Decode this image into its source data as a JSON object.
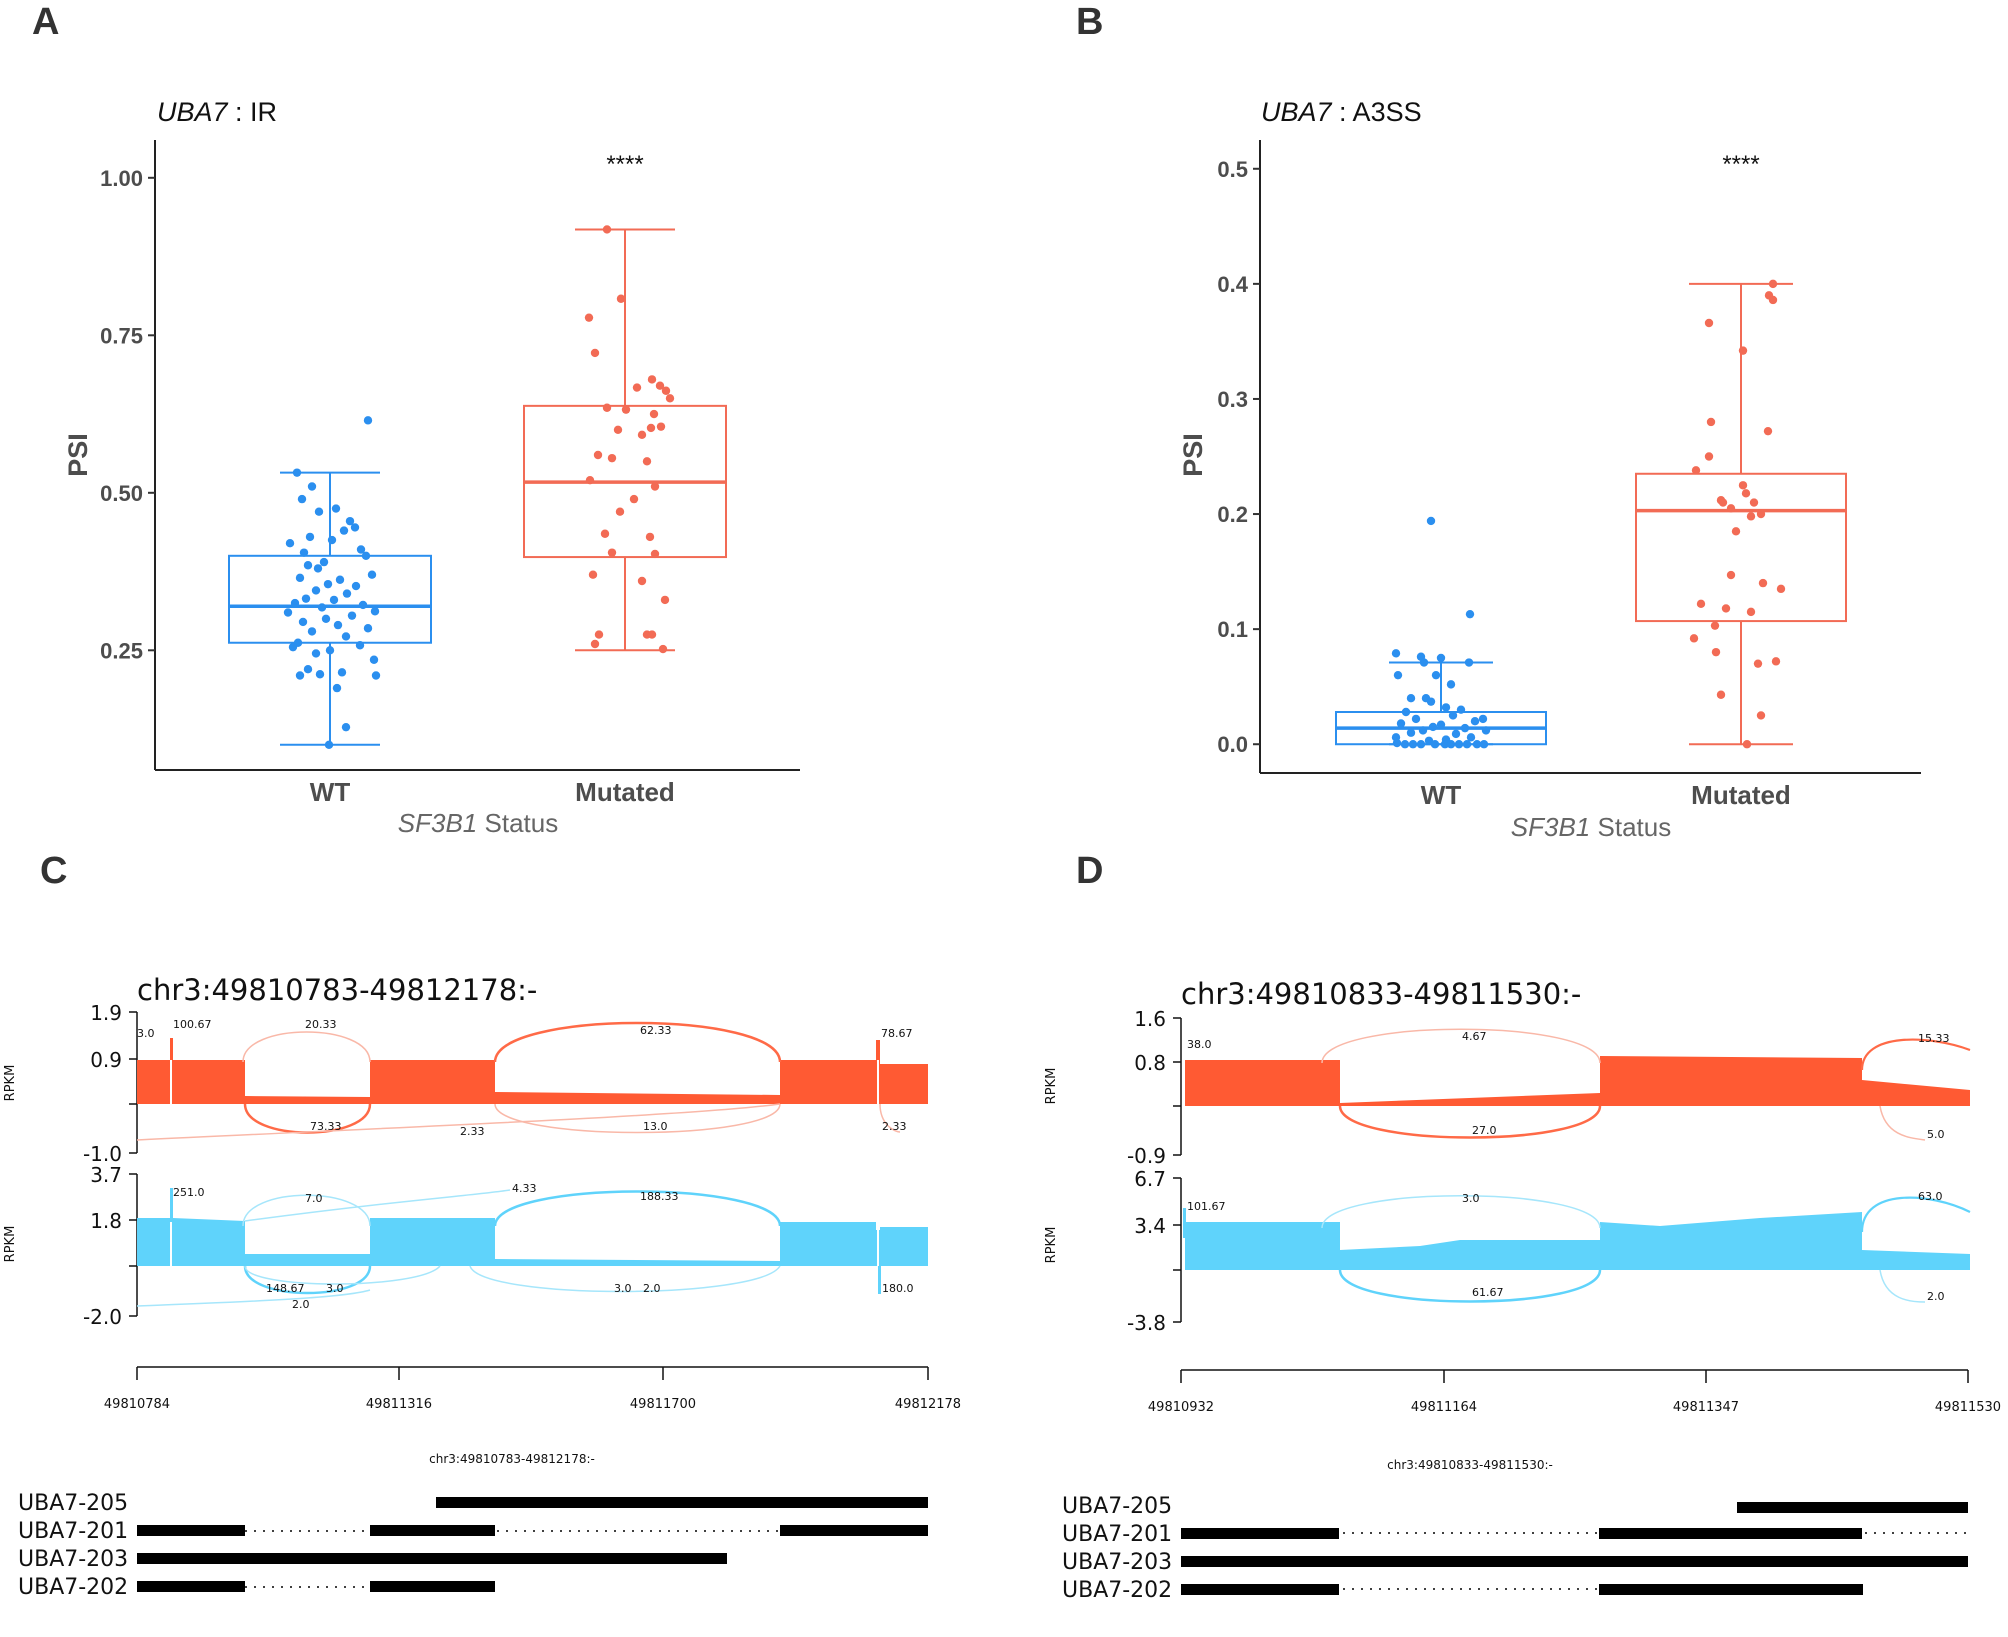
{
  "panel_letters": {
    "A": "A",
    "B": "B",
    "C": "C",
    "D": "D"
  },
  "chart_data": [
    {
      "panel": "A",
      "type": "box",
      "title_gene": "UBA7",
      "title_rest": " : IR",
      "ylabel": "PSI",
      "xlabel_italic": "SF3B1",
      "xlabel_rest": " Status",
      "ylim": [
        0.06,
        1.06
      ],
      "yticks": [
        0.25,
        0.5,
        0.75,
        1.0
      ],
      "ytick_labels": [
        "0.25",
        "0.50",
        "0.75",
        "1.00"
      ],
      "categories": [
        "WT",
        "Mutated"
      ],
      "significance": "****",
      "boxes": [
        {
          "name": "WT",
          "color": "#2b8fef",
          "min": 0.1,
          "q1": 0.262,
          "median": 0.32,
          "q3": 0.4,
          "max": 0.532
        },
        {
          "name": "Mutated",
          "color": "#f26b55",
          "min": 0.25,
          "q1": 0.398,
          "median": 0.517,
          "q3": 0.638,
          "max": 0.918
        }
      ],
      "points": [
        {
          "g": 0,
          "dx": 0.38,
          "y": 0.615
        },
        {
          "g": 0,
          "dx": -0.33,
          "y": 0.532
        },
        {
          "g": 0,
          "dx": -0.18,
          "y": 0.51
        },
        {
          "g": 0,
          "dx": -0.28,
          "y": 0.49
        },
        {
          "g": 0,
          "dx": 0.06,
          "y": 0.475
        },
        {
          "g": 0,
          "dx": -0.11,
          "y": 0.47
        },
        {
          "g": 0,
          "dx": 0.2,
          "y": 0.455
        },
        {
          "g": 0,
          "dx": 0.25,
          "y": 0.445
        },
        {
          "g": 0,
          "dx": 0.14,
          "y": 0.44
        },
        {
          "g": 0,
          "dx": -0.2,
          "y": 0.43
        },
        {
          "g": 0,
          "dx": 0.02,
          "y": 0.425
        },
        {
          "g": 0,
          "dx": -0.4,
          "y": 0.42
        },
        {
          "g": 0,
          "dx": 0.31,
          "y": 0.41
        },
        {
          "g": 0,
          "dx": -0.26,
          "y": 0.405
        },
        {
          "g": 0,
          "dx": 0.36,
          "y": 0.4
        },
        {
          "g": 0,
          "dx": -0.06,
          "y": 0.39
        },
        {
          "g": 0,
          "dx": -0.22,
          "y": 0.385
        },
        {
          "g": 0,
          "dx": -0.12,
          "y": 0.38
        },
        {
          "g": 0,
          "dx": 0.42,
          "y": 0.37
        },
        {
          "g": 0,
          "dx": -0.3,
          "y": 0.365
        },
        {
          "g": 0,
          "dx": 0.1,
          "y": 0.362
        },
        {
          "g": 0,
          "dx": -0.02,
          "y": 0.355
        },
        {
          "g": 0,
          "dx": 0.26,
          "y": 0.352
        },
        {
          "g": 0,
          "dx": -0.14,
          "y": 0.345
        },
        {
          "g": 0,
          "dx": 0.17,
          "y": 0.34
        },
        {
          "g": 0,
          "dx": -0.24,
          "y": 0.332
        },
        {
          "g": 0,
          "dx": 0.04,
          "y": 0.33
        },
        {
          "g": 0,
          "dx": -0.35,
          "y": 0.325
        },
        {
          "g": 0,
          "dx": 0.33,
          "y": 0.322
        },
        {
          "g": 0,
          "dx": -0.08,
          "y": 0.318
        },
        {
          "g": 0,
          "dx": 0.45,
          "y": 0.312
        },
        {
          "g": 0,
          "dx": -0.42,
          "y": 0.31
        },
        {
          "g": 0,
          "dx": 0.22,
          "y": 0.305
        },
        {
          "g": 0,
          "dx": -0.04,
          "y": 0.3
        },
        {
          "g": 0,
          "dx": -0.27,
          "y": 0.295
        },
        {
          "g": 0,
          "dx": 0.08,
          "y": 0.29
        },
        {
          "g": 0,
          "dx": 0.38,
          "y": 0.285
        },
        {
          "g": 0,
          "dx": -0.18,
          "y": 0.28
        },
        {
          "g": 0,
          "dx": 0.16,
          "y": 0.272
        },
        {
          "g": 0,
          "dx": -0.32,
          "y": 0.262
        },
        {
          "g": 0,
          "dx": 0.3,
          "y": 0.258
        },
        {
          "g": 0,
          "dx": -0.37,
          "y": 0.255
        },
        {
          "g": 0,
          "dx": 0.0,
          "y": 0.25
        },
        {
          "g": 0,
          "dx": -0.14,
          "y": 0.245
        },
        {
          "g": 0,
          "dx": 0.44,
          "y": 0.235
        },
        {
          "g": 0,
          "dx": -0.22,
          "y": 0.22
        },
        {
          "g": 0,
          "dx": 0.12,
          "y": 0.215
        },
        {
          "g": 0,
          "dx": -0.1,
          "y": 0.212
        },
        {
          "g": 0,
          "dx": -0.3,
          "y": 0.21
        },
        {
          "g": 0,
          "dx": 0.46,
          "y": 0.21
        },
        {
          "g": 0,
          "dx": 0.07,
          "y": 0.19
        },
        {
          "g": 0,
          "dx": 0.16,
          "y": 0.128
        },
        {
          "g": 0,
          "dx": -0.01,
          "y": 0.1
        },
        {
          "g": 1,
          "dx": -0.18,
          "y": 0.918
        },
        {
          "g": 1,
          "dx": -0.04,
          "y": 0.808
        },
        {
          "g": 1,
          "dx": -0.36,
          "y": 0.778
        },
        {
          "g": 1,
          "dx": -0.3,
          "y": 0.722
        },
        {
          "g": 1,
          "dx": 0.27,
          "y": 0.68
        },
        {
          "g": 1,
          "dx": 0.35,
          "y": 0.67
        },
        {
          "g": 1,
          "dx": 0.12,
          "y": 0.667
        },
        {
          "g": 1,
          "dx": 0.41,
          "y": 0.662
        },
        {
          "g": 1,
          "dx": 0.45,
          "y": 0.65
        },
        {
          "g": 1,
          "dx": -0.18,
          "y": 0.635
        },
        {
          "g": 1,
          "dx": 0.01,
          "y": 0.632
        },
        {
          "g": 1,
          "dx": 0.29,
          "y": 0.625
        },
        {
          "g": 1,
          "dx": 0.36,
          "y": 0.605
        },
        {
          "g": 1,
          "dx": 0.26,
          "y": 0.603
        },
        {
          "g": 1,
          "dx": -0.07,
          "y": 0.6
        },
        {
          "g": 1,
          "dx": 0.17,
          "y": 0.592
        },
        {
          "g": 1,
          "dx": -0.27,
          "y": 0.56
        },
        {
          "g": 1,
          "dx": -0.13,
          "y": 0.555
        },
        {
          "g": 1,
          "dx": 0.22,
          "y": 0.55
        },
        {
          "g": 1,
          "dx": -0.35,
          "y": 0.52
        },
        {
          "g": 1,
          "dx": 0.3,
          "y": 0.51
        },
        {
          "g": 1,
          "dx": 0.09,
          "y": 0.49
        },
        {
          "g": 1,
          "dx": -0.05,
          "y": 0.47
        },
        {
          "g": 1,
          "dx": -0.2,
          "y": 0.435
        },
        {
          "g": 1,
          "dx": 0.25,
          "y": 0.43
        },
        {
          "g": 1,
          "dx": -0.13,
          "y": 0.405
        },
        {
          "g": 1,
          "dx": 0.3,
          "y": 0.403
        },
        {
          "g": 1,
          "dx": -0.32,
          "y": 0.37
        },
        {
          "g": 1,
          "dx": 0.17,
          "y": 0.36
        },
        {
          "g": 1,
          "dx": 0.4,
          "y": 0.33
        },
        {
          "g": 1,
          "dx": -0.26,
          "y": 0.275
        },
        {
          "g": 1,
          "dx": 0.22,
          "y": 0.275
        },
        {
          "g": 1,
          "dx": 0.27,
          "y": 0.275
        },
        {
          "g": 1,
          "dx": -0.3,
          "y": 0.26
        },
        {
          "g": 1,
          "dx": 0.38,
          "y": 0.252
        }
      ]
    },
    {
      "panel": "B",
      "type": "box",
      "title_gene": "UBA7",
      "title_rest": " : A3SS",
      "ylabel": "PSI",
      "xlabel_italic": "SF3B1",
      "xlabel_rest": " Status",
      "ylim": [
        -0.025,
        0.525
      ],
      "yticks": [
        0.0,
        0.1,
        0.2,
        0.3,
        0.4,
        0.5
      ],
      "ytick_labels": [
        "0.0",
        "0.1",
        "0.2",
        "0.3",
        "0.4",
        "0.5"
      ],
      "categories": [
        "WT",
        "Mutated"
      ],
      "significance": "****",
      "boxes": [
        {
          "name": "WT",
          "color": "#2b8fef",
          "min": 0.0,
          "q1": 0.0,
          "median": 0.014,
          "q3": 0.028,
          "max": 0.071
        },
        {
          "name": "Mutated",
          "color": "#f26b55",
          "min": 0.0,
          "q1": 0.107,
          "median": 0.203,
          "q3": 0.235,
          "max": 0.4
        }
      ],
      "points": [
        {
          "g": 0,
          "dx": -0.1,
          "y": 0.194
        },
        {
          "g": 0,
          "dx": 0.29,
          "y": 0.113
        },
        {
          "g": 0,
          "dx": -0.45,
          "y": 0.079
        },
        {
          "g": 0,
          "dx": -0.2,
          "y": 0.076
        },
        {
          "g": 0,
          "dx": 0.0,
          "y": 0.075
        },
        {
          "g": 0,
          "dx": -0.17,
          "y": 0.071
        },
        {
          "g": 0,
          "dx": 0.28,
          "y": 0.071
        },
        {
          "g": 0,
          "dx": -0.43,
          "y": 0.06
        },
        {
          "g": 0,
          "dx": -0.05,
          "y": 0.06
        },
        {
          "g": 0,
          "dx": 0.1,
          "y": 0.052
        },
        {
          "g": 0,
          "dx": -0.3,
          "y": 0.04
        },
        {
          "g": 0,
          "dx": -0.15,
          "y": 0.04
        },
        {
          "g": 0,
          "dx": -0.1,
          "y": 0.037
        },
        {
          "g": 0,
          "dx": 0.05,
          "y": 0.032
        },
        {
          "g": 0,
          "dx": 0.2,
          "y": 0.03
        },
        {
          "g": 0,
          "dx": -0.35,
          "y": 0.028
        },
        {
          "g": 0,
          "dx": 0.12,
          "y": 0.025
        },
        {
          "g": 0,
          "dx": -0.25,
          "y": 0.022
        },
        {
          "g": 0,
          "dx": 0.42,
          "y": 0.022
        },
        {
          "g": 0,
          "dx": 0.34,
          "y": 0.02
        },
        {
          "g": 0,
          "dx": -0.4,
          "y": 0.018
        },
        {
          "g": 0,
          "dx": 0.0,
          "y": 0.017
        },
        {
          "g": 0,
          "dx": -0.08,
          "y": 0.015
        },
        {
          "g": 0,
          "dx": 0.24,
          "y": 0.014
        },
        {
          "g": 0,
          "dx": -0.18,
          "y": 0.012
        },
        {
          "g": 0,
          "dx": 0.45,
          "y": 0.012
        },
        {
          "g": 0,
          "dx": -0.3,
          "y": 0.01
        },
        {
          "g": 0,
          "dx": 0.15,
          "y": 0.009
        },
        {
          "g": 0,
          "dx": -0.45,
          "y": 0.006
        },
        {
          "g": 0,
          "dx": 0.3,
          "y": 0.006
        },
        {
          "g": 0,
          "dx": 0.05,
          "y": 0.004
        },
        {
          "g": 0,
          "dx": -0.12,
          "y": 0.003
        },
        {
          "g": 0,
          "dx": -0.44,
          "y": 0.001
        },
        {
          "g": 0,
          "dx": -0.36,
          "y": 0.0
        },
        {
          "g": 0,
          "dx": -0.28,
          "y": 0.0
        },
        {
          "g": 0,
          "dx": -0.2,
          "y": 0.0
        },
        {
          "g": 0,
          "dx": -0.06,
          "y": 0.0
        },
        {
          "g": 0,
          "dx": 0.04,
          "y": 0.0
        },
        {
          "g": 0,
          "dx": 0.1,
          "y": 0.0
        },
        {
          "g": 0,
          "dx": 0.18,
          "y": 0.0
        },
        {
          "g": 0,
          "dx": 0.26,
          "y": 0.0
        },
        {
          "g": 0,
          "dx": 0.36,
          "y": 0.0
        },
        {
          "g": 0,
          "dx": 0.43,
          "y": 0.0
        },
        {
          "g": 1,
          "dx": 0.32,
          "y": 0.4
        },
        {
          "g": 1,
          "dx": 0.28,
          "y": 0.39
        },
        {
          "g": 1,
          "dx": 0.32,
          "y": 0.386
        },
        {
          "g": 1,
          "dx": -0.32,
          "y": 0.366
        },
        {
          "g": 1,
          "dx": 0.02,
          "y": 0.342
        },
        {
          "g": 1,
          "dx": -0.3,
          "y": 0.28
        },
        {
          "g": 1,
          "dx": 0.27,
          "y": 0.272
        },
        {
          "g": 1,
          "dx": -0.32,
          "y": 0.25
        },
        {
          "g": 1,
          "dx": -0.45,
          "y": 0.238
        },
        {
          "g": 1,
          "dx": 0.02,
          "y": 0.225
        },
        {
          "g": 1,
          "dx": 0.05,
          "y": 0.218
        },
        {
          "g": 1,
          "dx": -0.2,
          "y": 0.212
        },
        {
          "g": 1,
          "dx": -0.18,
          "y": 0.21
        },
        {
          "g": 1,
          "dx": 0.13,
          "y": 0.21
        },
        {
          "g": 1,
          "dx": -0.1,
          "y": 0.205
        },
        {
          "g": 1,
          "dx": 0.2,
          "y": 0.2
        },
        {
          "g": 1,
          "dx": 0.1,
          "y": 0.198
        },
        {
          "g": 1,
          "dx": -0.05,
          "y": 0.185
        },
        {
          "g": 1,
          "dx": -0.1,
          "y": 0.147
        },
        {
          "g": 1,
          "dx": 0.22,
          "y": 0.14
        },
        {
          "g": 1,
          "dx": 0.4,
          "y": 0.135
        },
        {
          "g": 1,
          "dx": -0.4,
          "y": 0.122
        },
        {
          "g": 1,
          "dx": -0.15,
          "y": 0.118
        },
        {
          "g": 1,
          "dx": 0.1,
          "y": 0.115
        },
        {
          "g": 1,
          "dx": -0.26,
          "y": 0.103
        },
        {
          "g": 1,
          "dx": -0.47,
          "y": 0.092
        },
        {
          "g": 1,
          "dx": -0.25,
          "y": 0.08
        },
        {
          "g": 1,
          "dx": 0.35,
          "y": 0.072
        },
        {
          "g": 1,
          "dx": 0.17,
          "y": 0.07
        },
        {
          "g": 1,
          "dx": -0.2,
          "y": 0.043
        },
        {
          "g": 1,
          "dx": 0.2,
          "y": 0.025
        },
        {
          "g": 1,
          "dx": 0.06,
          "y": 0.0
        }
      ]
    },
    {
      "panel": "C",
      "type": "area",
      "region": "chr3:49810783-49812178:-",
      "coord_label": "chr3:49810783-49812178:-",
      "xticks": [
        "49810784",
        "49811316",
        "49811700",
        "49812178"
      ],
      "ylabel": "RPKM",
      "tracks": [
        {
          "name": "mutated",
          "color": "#ff5a33",
          "ticks": [
            "1.9",
            "0.9",
            "-1.0"
          ],
          "junctions_above": [
            "3.0",
            "100.67",
            "20.33",
            "62.33",
            "78.67"
          ],
          "junctions_below": [
            "73.33",
            "2.33",
            "13.0",
            "2.33"
          ]
        },
        {
          "name": "wt",
          "color": "#5fd3fb",
          "ticks": [
            "3.7",
            "1.8",
            "-2.0"
          ],
          "junctions_above": [
            "251.0",
            "7.0",
            "4.33",
            "188.33"
          ],
          "junctions_below": [
            "148.67",
            "3.0",
            "2.0",
            "3.0",
            "2.0",
            "180.0"
          ]
        }
      ],
      "isoforms": [
        "UBA7-205",
        "UBA7-201",
        "UBA7-203",
        "UBA7-202"
      ]
    },
    {
      "panel": "D",
      "type": "area",
      "region": "chr3:49810833-49811530:-",
      "coord_label": "chr3:49810833-49811530:-",
      "xticks": [
        "49810932",
        "49811164",
        "49811347",
        "49811530"
      ],
      "ylabel": "RPKM",
      "tracks": [
        {
          "name": "mutated",
          "color": "#ff5a33",
          "ticks": [
            "1.6",
            "0.8",
            "-0.9"
          ],
          "junctions_above": [
            "38.0",
            "4.67",
            "15.33"
          ],
          "junctions_below": [
            "27.0",
            "5.0"
          ]
        },
        {
          "name": "wt",
          "color": "#5fd3fb",
          "ticks": [
            "6.7",
            "3.4",
            "-3.8"
          ],
          "junctions_above": [
            "101.67",
            "3.0",
            "63.0"
          ],
          "junctions_below": [
            "61.67",
            "2.0"
          ]
        }
      ],
      "isoforms": [
        "UBA7-205",
        "UBA7-201",
        "UBA7-203",
        "UBA7-202"
      ]
    }
  ]
}
